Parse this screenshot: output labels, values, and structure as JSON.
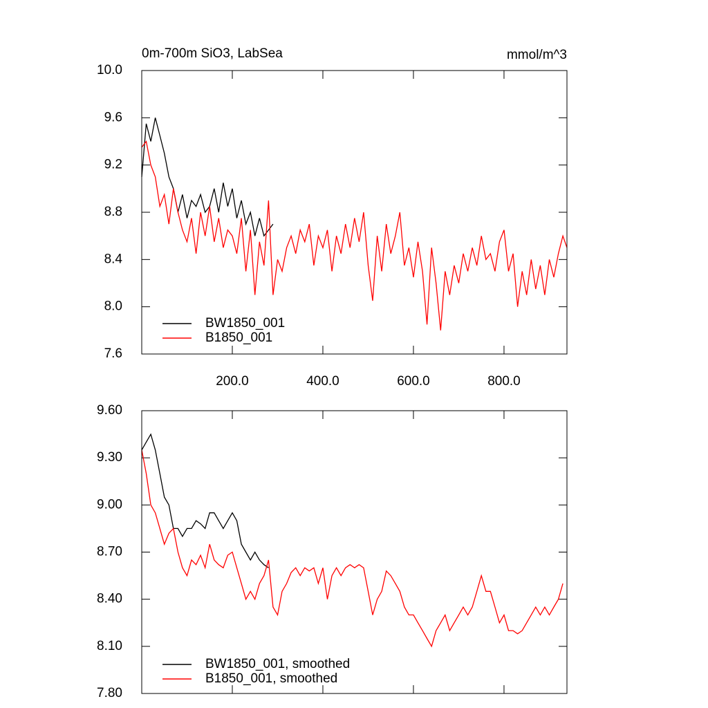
{
  "chart_data": [
    {
      "type": "line",
      "title": "0m-700m SiO3, LabSea",
      "units": "mmol/m^3",
      "xlim": [
        0,
        939
      ],
      "xticks": [
        {
          "value": 200,
          "label": "200.0"
        },
        {
          "value": 400,
          "label": "400.0"
        },
        {
          "value": 600,
          "label": "600.0"
        },
        {
          "value": 800,
          "label": "800.0"
        }
      ],
      "xtick_labels": true,
      "ylim": [
        7.6,
        10
      ],
      "yticks": [
        {
          "value": 7.6,
          "label": "7.6"
        },
        {
          "value": 8,
          "label": "8.0"
        },
        8.4,
        8.8,
        9.2,
        9.6,
        {
          "value": 10,
          "label": "10.0"
        }
      ],
      "series": [
        {
          "name": "BW1850_001",
          "color": "#000000",
          "x": [
            0,
            10,
            20,
            30,
            40,
            50,
            60,
            70,
            80,
            90,
            100,
            110,
            120,
            130,
            140,
            150,
            160,
            170,
            180,
            190,
            200,
            210,
            220,
            230,
            240,
            250,
            260,
            270,
            280,
            290
          ],
          "values": [
            9.1,
            9.55,
            9.4,
            9.6,
            9.45,
            9.3,
            9.1,
            9.0,
            8.8,
            8.95,
            8.75,
            8.9,
            8.85,
            8.95,
            8.8,
            8.85,
            9.0,
            8.8,
            9.05,
            8.85,
            9.0,
            8.75,
            8.9,
            8.7,
            8.8,
            8.6,
            8.75,
            8.6,
            8.65,
            8.7
          ]
        },
        {
          "name": "B1850_001",
          "color": "#ff0000",
          "x": [
            0,
            10,
            20,
            30,
            40,
            50,
            60,
            70,
            80,
            90,
            100,
            110,
            120,
            130,
            140,
            150,
            160,
            170,
            180,
            190,
            200,
            210,
            220,
            230,
            240,
            250,
            260,
            270,
            280,
            290,
            300,
            310,
            320,
            330,
            340,
            350,
            360,
            370,
            380,
            390,
            400,
            410,
            420,
            430,
            440,
            450,
            460,
            470,
            480,
            490,
            500,
            510,
            520,
            530,
            540,
            550,
            560,
            570,
            580,
            590,
            600,
            610,
            620,
            630,
            640,
            650,
            660,
            670,
            680,
            690,
            700,
            710,
            720,
            730,
            740,
            750,
            760,
            770,
            780,
            790,
            800,
            810,
            820,
            830,
            840,
            850,
            860,
            870,
            880,
            890,
            900,
            910,
            920,
            930,
            939
          ],
          "values": [
            9.35,
            9.4,
            9.2,
            9.1,
            8.85,
            8.95,
            8.7,
            9.0,
            8.8,
            8.65,
            8.55,
            8.75,
            8.45,
            8.8,
            8.6,
            8.85,
            8.55,
            8.75,
            8.5,
            8.65,
            8.6,
            8.45,
            8.75,
            8.3,
            8.65,
            8.1,
            8.55,
            8.35,
            8.9,
            8.1,
            8.4,
            8.3,
            8.5,
            8.6,
            8.45,
            8.65,
            8.55,
            8.7,
            8.35,
            8.6,
            8.5,
            8.65,
            8.3,
            8.6,
            8.45,
            8.7,
            8.5,
            8.75,
            8.55,
            8.8,
            8.35,
            8.05,
            8.6,
            8.3,
            8.7,
            8.45,
            8.6,
            8.8,
            8.35,
            8.5,
            8.25,
            8.55,
            8.3,
            7.85,
            8.5,
            8.2,
            7.8,
            8.3,
            8.1,
            8.35,
            8.2,
            8.45,
            8.3,
            8.5,
            8.35,
            8.6,
            8.4,
            8.45,
            8.3,
            8.55,
            8.65,
            8.3,
            8.45,
            8.0,
            8.3,
            8.1,
            8.4,
            8.15,
            8.35,
            8.1,
            8.4,
            8.25,
            8.45,
            8.6,
            8.5
          ]
        }
      ]
    },
    {
      "type": "line",
      "xlim": [
        0,
        939
      ],
      "xticks": [
        200,
        400,
        600,
        800
      ],
      "xtick_labels": false,
      "ylim": [
        7.8,
        9.6
      ],
      "yticks": [
        {
          "value": 7.8,
          "label": "7.80"
        },
        {
          "value": 8.1,
          "label": "8.10"
        },
        {
          "value": 8.4,
          "label": "8.40"
        },
        {
          "value": 8.7,
          "label": "8.70"
        },
        {
          "value": 9,
          "label": "9.00"
        },
        {
          "value": 9.3,
          "label": "9.30"
        },
        {
          "value": 9.6,
          "label": "9.60"
        }
      ],
      "series": [
        {
          "name": "BW1850_001, smoothed",
          "color": "#000000",
          "x": [
            0,
            10,
            20,
            30,
            40,
            50,
            60,
            70,
            80,
            90,
            100,
            110,
            120,
            130,
            140,
            150,
            160,
            170,
            180,
            190,
            200,
            210,
            220,
            230,
            240,
            250,
            260,
            270,
            280
          ],
          "values": [
            9.35,
            9.4,
            9.45,
            9.35,
            9.2,
            9.05,
            9.0,
            8.85,
            8.85,
            8.8,
            8.85,
            8.85,
            8.9,
            8.88,
            8.85,
            8.95,
            8.95,
            8.9,
            8.85,
            8.9,
            8.95,
            8.9,
            8.75,
            8.7,
            8.65,
            8.7,
            8.65,
            8.62,
            8.6
          ]
        },
        {
          "name": "B1850_001, smoothed",
          "color": "#ff0000",
          "x": [
            0,
            10,
            20,
            30,
            40,
            50,
            60,
            70,
            80,
            90,
            100,
            110,
            120,
            130,
            140,
            150,
            160,
            170,
            180,
            190,
            200,
            210,
            220,
            230,
            240,
            250,
            260,
            270,
            280,
            290,
            300,
            310,
            320,
            330,
            340,
            350,
            360,
            370,
            380,
            390,
            400,
            410,
            420,
            430,
            440,
            450,
            460,
            470,
            480,
            490,
            500,
            510,
            520,
            530,
            540,
            550,
            560,
            570,
            580,
            590,
            600,
            610,
            620,
            630,
            640,
            650,
            660,
            670,
            680,
            690,
            700,
            710,
            720,
            730,
            740,
            750,
            760,
            770,
            780,
            790,
            800,
            810,
            820,
            830,
            840,
            850,
            860,
            870,
            880,
            890,
            900,
            910,
            920,
            930
          ],
          "values": [
            9.35,
            9.2,
            9.0,
            8.95,
            8.85,
            8.75,
            8.82,
            8.85,
            8.7,
            8.6,
            8.55,
            8.65,
            8.62,
            8.68,
            8.6,
            8.75,
            8.65,
            8.62,
            8.6,
            8.68,
            8.7,
            8.6,
            8.5,
            8.4,
            8.45,
            8.4,
            8.5,
            8.55,
            8.65,
            8.35,
            8.3,
            8.45,
            8.5,
            8.57,
            8.6,
            8.55,
            8.6,
            8.58,
            8.6,
            8.5,
            8.6,
            8.4,
            8.55,
            8.6,
            8.55,
            8.6,
            8.62,
            8.6,
            8.62,
            8.6,
            8.45,
            8.3,
            8.4,
            8.45,
            8.58,
            8.55,
            8.5,
            8.45,
            8.35,
            8.3,
            8.3,
            8.25,
            8.2,
            8.15,
            8.1,
            8.2,
            8.25,
            8.3,
            8.2,
            8.25,
            8.3,
            8.35,
            8.3,
            8.35,
            8.45,
            8.55,
            8.45,
            8.45,
            8.35,
            8.25,
            8.3,
            8.2,
            8.2,
            8.18,
            8.2,
            8.25,
            8.3,
            8.35,
            8.3,
            8.35,
            8.3,
            8.35,
            8.4,
            8.5
          ]
        }
      ]
    }
  ]
}
